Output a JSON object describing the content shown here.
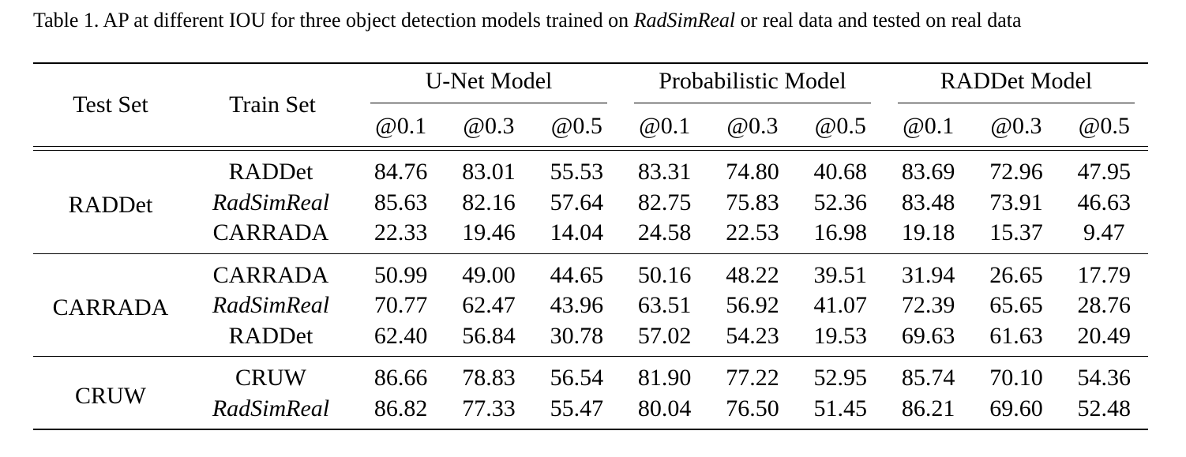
{
  "caption": {
    "prefix": "Table 1. AP at different IOU for three object detection models trained on ",
    "emphasis": "RadSimReal",
    "suffix": " or real data and tested on real data"
  },
  "headers": {
    "test_set": "Test Set",
    "train_set": "Train Set",
    "models": [
      "U-Net Model",
      "Probabilistic Model",
      "RADDet Model"
    ],
    "iou": [
      "@0.1",
      "@0.3",
      "@0.5"
    ]
  },
  "groups": [
    {
      "test_set": "RADDet",
      "rows": [
        {
          "train": "RADDet",
          "italic": false,
          "values": [
            "84.76",
            "83.01",
            "55.53",
            "83.31",
            "74.80",
            "40.68",
            "83.69",
            "72.96",
            "47.95"
          ]
        },
        {
          "train": "RadSimReal",
          "italic": true,
          "values": [
            "85.63",
            "82.16",
            "57.64",
            "82.75",
            "75.83",
            "52.36",
            "83.48",
            "73.91",
            "46.63"
          ]
        },
        {
          "train": "CARRADA",
          "italic": false,
          "values": [
            "22.33",
            "19.46",
            "14.04",
            "24.58",
            "22.53",
            "16.98",
            "19.18",
            "15.37",
            "9.47"
          ]
        }
      ]
    },
    {
      "test_set": "CARRADA",
      "rows": [
        {
          "train": "CARRADA",
          "italic": false,
          "values": [
            "50.99",
            "49.00",
            "44.65",
            "50.16",
            "48.22",
            "39.51",
            "31.94",
            "26.65",
            "17.79"
          ]
        },
        {
          "train": "RadSimReal",
          "italic": true,
          "values": [
            "70.77",
            "62.47",
            "43.96",
            "63.51",
            "56.92",
            "41.07",
            "72.39",
            "65.65",
            "28.76"
          ]
        },
        {
          "train": "RADDet",
          "italic": false,
          "values": [
            "62.40",
            "56.84",
            "30.78",
            "57.02",
            "54.23",
            "19.53",
            "69.63",
            "61.63",
            "20.49"
          ]
        }
      ]
    },
    {
      "test_set": "CRUW",
      "rows": [
        {
          "train": "CRUW",
          "italic": false,
          "values": [
            "86.66",
            "78.83",
            "56.54",
            "81.90",
            "77.22",
            "52.95",
            "85.74",
            "70.10",
            "54.36"
          ]
        },
        {
          "train": "RadSimReal",
          "italic": true,
          "values": [
            "86.82",
            "77.33",
            "55.47",
            "80.04",
            "76.50",
            "51.45",
            "86.21",
            "69.60",
            "52.48"
          ]
        }
      ]
    }
  ]
}
